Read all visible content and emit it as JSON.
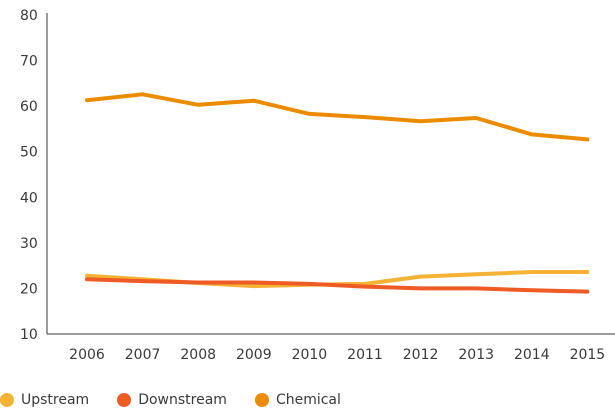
{
  "chart_data": {
    "type": "line",
    "title": "",
    "xlabel": "",
    "ylabel": "",
    "categories": [
      "2006",
      "2007",
      "2008",
      "2009",
      "2010",
      "2011",
      "2012",
      "2013",
      "2014",
      "2015"
    ],
    "ylim": [
      10,
      80
    ],
    "yticks": [
      "10",
      "20",
      "30",
      "40",
      "50",
      "60",
      "70",
      "80"
    ],
    "grid": false,
    "legend_position": "bottom-left",
    "series": [
      {
        "name": "Upstream",
        "color": "#f5b335",
        "values": [
          22.8,
          22.0,
          21.2,
          20.5,
          20.8,
          21.0,
          22.6,
          23.1,
          23.6,
          23.6
        ]
      },
      {
        "name": "Downstream",
        "color": "#ef5b25",
        "values": [
          22.0,
          21.6,
          21.3,
          21.3,
          21.0,
          20.4,
          20.0,
          20.0,
          19.6,
          19.3
        ]
      },
      {
        "name": "Chemical",
        "color": "#eb8c00",
        "values": [
          61.3,
          62.6,
          60.3,
          61.2,
          58.3,
          57.6,
          56.7,
          57.4,
          53.8,
          52.7
        ]
      }
    ]
  }
}
